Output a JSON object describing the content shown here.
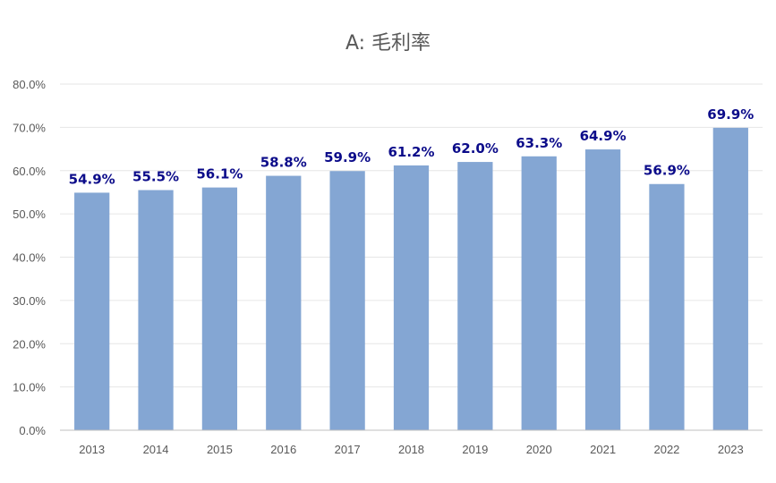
{
  "chart_data": {
    "type": "bar",
    "title": "A: 毛利率",
    "xlabel": "",
    "ylabel": "",
    "categories": [
      "2013",
      "2014",
      "2015",
      "2016",
      "2017",
      "2018",
      "2019",
      "2020",
      "2021",
      "2022",
      "2023"
    ],
    "values": [
      54.9,
      55.5,
      56.1,
      58.8,
      59.9,
      61.2,
      62.0,
      63.3,
      64.9,
      56.9,
      69.9
    ],
    "data_labels": [
      "54.9%",
      "55.5%",
      "56.1%",
      "58.8%",
      "59.9%",
      "61.2%",
      "62.0%",
      "63.3%",
      "64.9%",
      "56.9%",
      "69.9%"
    ],
    "ylim": [
      0,
      80
    ],
    "y_ticks": [
      "0.0%",
      "10.0%",
      "20.0%",
      "30.0%",
      "40.0%",
      "50.0%",
      "60.0%",
      "70.0%",
      "80.0%"
    ],
    "grid": true,
    "legend": "none",
    "colors": {
      "bar": "#84a6d3",
      "data_label": "#0c0c8a",
      "grid": "#e6e6e6",
      "axis": "#bfbfbf",
      "tick_text": "#595959",
      "title": "#595959"
    }
  }
}
